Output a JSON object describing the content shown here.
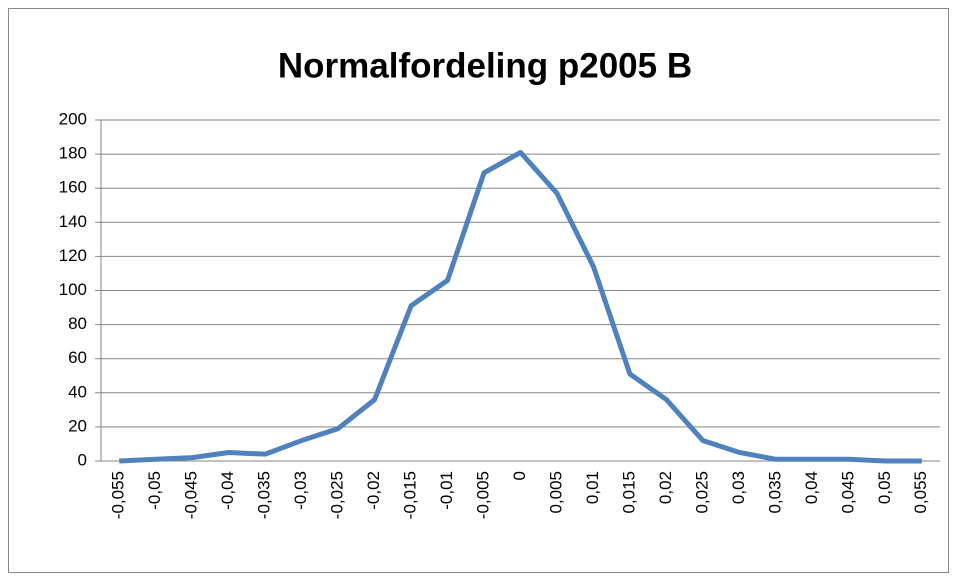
{
  "chart_data": {
    "type": "line",
    "title": "Normalfordeling p2005 B",
    "categories": [
      "-0,055",
      "-0,05",
      "-0,045",
      "-0,04",
      "-0,035",
      "-0,03",
      "-0,025",
      "-0,02",
      "-0,015",
      "-0,01",
      "-0,005",
      "0",
      "0,005",
      "0,01",
      "0,015",
      "0,02",
      "0,025",
      "0,03",
      "0,035",
      "0,04",
      "0,045",
      "0,05",
      "0,055"
    ],
    "series": [
      {
        "name": "p2005 B",
        "color": "#4f81bd",
        "values": [
          0,
          1,
          2,
          5,
          4,
          12,
          19,
          36,
          91,
          106,
          169,
          181,
          157,
          114,
          51,
          36,
          12,
          5,
          1,
          1,
          1,
          0,
          0
        ]
      }
    ],
    "ylim": [
      0,
      200
    ],
    "yticks": [
      0,
      20,
      40,
      60,
      80,
      100,
      120,
      140,
      160,
      180,
      200
    ],
    "grid": true
  }
}
